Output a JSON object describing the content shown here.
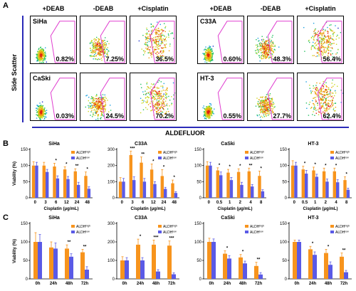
{
  "panels": {
    "a": "A",
    "b": "B",
    "c": "C"
  },
  "flow": {
    "headers": [
      "+DEAB",
      "-DEAB",
      "+Cisplatin"
    ],
    "y_title": "Side Scatter",
    "x_title": "ALDEFLUOR",
    "groups": [
      {
        "rows": [
          {
            "cell": "SiHa",
            "percentages": [
              "0.82%",
              "7.25%",
              "36.5%"
            ]
          },
          {
            "cell": "CaSki",
            "percentages": [
              "0.03%",
              "24.5%",
              "70.2%"
            ]
          }
        ]
      },
      {
        "rows": [
          {
            "cell": "C33A",
            "percentages": [
              "0.60%",
              "48.3%",
              "56.4%"
            ]
          },
          {
            "cell": "HT-3",
            "percentages": [
              "0.55%",
              "27.7%",
              "62.4%"
            ]
          }
        ]
      }
    ],
    "colors": {
      "gate": "#e040d0",
      "axis_line": "#2a2ab8"
    }
  },
  "chart_data": [
    {
      "panel": "B",
      "type": "bar",
      "title": "SiHa",
      "xlabel": "Cisplatin (μg/mL)",
      "ylabel": "Viability (%)",
      "categories": [
        "0",
        "3",
        "6",
        "12",
        "24",
        "48"
      ],
      "ylim": [
        0,
        150
      ],
      "yticks": [
        0,
        50,
        100,
        150
      ],
      "series": [
        {
          "name": "ALDHhigh",
          "values": [
            100,
            100,
            97,
            88,
            82,
            68
          ]
        },
        {
          "name": "ALDHlow",
          "values": [
            100,
            80,
            60,
            58,
            40,
            28
          ]
        }
      ],
      "errors": [
        [
          12,
          10,
          10,
          8,
          8,
          12
        ],
        [
          10,
          8,
          8,
          8,
          8,
          6
        ]
      ],
      "stars": [
        "",
        "",
        "*",
        "*",
        "**",
        "*"
      ]
    },
    {
      "panel": "B",
      "type": "bar",
      "title": "C33A",
      "xlabel": "Cisplatin (μg/mL)",
      "ylabel": "",
      "categories": [
        "0",
        "3",
        "6",
        "12",
        "24",
        "48"
      ],
      "ylim": [
        0,
        300
      ],
      "yticks": [
        0,
        100,
        200,
        300
      ],
      "series": [
        {
          "name": "ALDHhigh",
          "values": [
            100,
            265,
            218,
            175,
            135,
            90
          ]
        },
        {
          "name": "ALDHlow",
          "values": [
            100,
            110,
            100,
            85,
            55,
            30
          ]
        }
      ],
      "errors": [
        [
          25,
          25,
          35,
          35,
          40,
          20
        ],
        [
          20,
          20,
          20,
          15,
          10,
          8
        ]
      ],
      "stars": [
        "",
        "***",
        "**",
        "*",
        "*",
        "*"
      ]
    },
    {
      "panel": "B",
      "type": "bar",
      "title": "CaSki",
      "xlabel": "Cisplatin (μg/mL)",
      "ylabel": "",
      "categories": [
        "0",
        "0.5",
        "1",
        "2",
        "4",
        "8"
      ],
      "ylim": [
        0,
        150
      ],
      "yticks": [
        0,
        50,
        100,
        150
      ],
      "series": [
        {
          "name": "ALDHhigh",
          "values": [
            100,
            85,
            78,
            80,
            82,
            68
          ]
        },
        {
          "name": "ALDHlow",
          "values": [
            100,
            70,
            55,
            40,
            35,
            20
          ]
        }
      ],
      "errors": [
        [
          12,
          8,
          10,
          10,
          10,
          15
        ],
        [
          10,
          10,
          8,
          8,
          6,
          5
        ]
      ],
      "stars": [
        "",
        "*",
        "*",
        "*",
        "**",
        "*"
      ]
    },
    {
      "panel": "B",
      "type": "bar",
      "title": "HT-3",
      "xlabel": "Cisplatin (μg/mL)",
      "ylabel": "",
      "categories": [
        "0",
        "0.5",
        "1",
        "2",
        "4",
        "8"
      ],
      "ylim": [
        0,
        150
      ],
      "yticks": [
        0,
        50,
        100,
        150
      ],
      "series": [
        {
          "name": "ALDHhigh",
          "values": [
            100,
            88,
            85,
            82,
            82,
            55
          ]
        },
        {
          "name": "ALDHlow",
          "values": [
            100,
            75,
            65,
            50,
            48,
            25
          ]
        }
      ],
      "errors": [
        [
          15,
          10,
          10,
          10,
          10,
          10
        ],
        [
          10,
          10,
          8,
          8,
          8,
          5
        ]
      ],
      "stars": [
        "",
        "*",
        "*",
        "*",
        "*",
        "*"
      ]
    },
    {
      "panel": "C",
      "type": "bar",
      "title": "SiHa",
      "xlabel": "",
      "ylabel": "Viability (%)",
      "categories": [
        "0h",
        "24h",
        "48h",
        "72h"
      ],
      "ylim": [
        0,
        150
      ],
      "yticks": [
        0,
        50,
        100,
        150
      ],
      "series": [
        {
          "name": "ALDHhigh",
          "values": [
            100,
            85,
            82,
            72
          ]
        },
        {
          "name": "ALDHlow",
          "values": [
            100,
            82,
            60,
            25
          ]
        }
      ],
      "errors": [
        [
          25,
          15,
          10,
          8
        ],
        [
          20,
          15,
          8,
          8
        ]
      ],
      "stars": [
        "",
        "",
        "**",
        "**"
      ]
    },
    {
      "panel": "C",
      "type": "bar",
      "title": "C33A",
      "xlabel": "",
      "ylabel": "",
      "categories": [
        "0h",
        "24h",
        "48h",
        "72h"
      ],
      "ylim": [
        0,
        300
      ],
      "yticks": [
        0,
        100,
        200,
        300
      ],
      "series": [
        {
          "name": "ALDHhigh",
          "values": [
            100,
            185,
            185,
            180
          ]
        },
        {
          "name": "ALDHlow",
          "values": [
            100,
            100,
            40,
            25
          ]
        }
      ],
      "errors": [
        [
          20,
          30,
          25,
          25
        ],
        [
          15,
          15,
          10,
          8
        ]
      ],
      "stars": [
        "",
        "*",
        "***",
        "***"
      ]
    },
    {
      "panel": "C",
      "type": "bar",
      "title": "CaSki",
      "xlabel": "",
      "ylabel": "",
      "categories": [
        "0h",
        "24h",
        "48h",
        "72h"
      ],
      "ylim": [
        0,
        150
      ],
      "yticks": [
        0,
        50,
        100,
        150
      ],
      "series": [
        {
          "name": "ALDHhigh",
          "values": [
            100,
            68,
            58,
            35
          ]
        },
        {
          "name": "ALDHlow",
          "values": [
            100,
            55,
            42,
            12
          ]
        }
      ],
      "errors": [
        [
          10,
          8,
          8,
          10
        ],
        [
          8,
          8,
          6,
          5
        ]
      ],
      "stars": [
        "",
        "*",
        "*",
        "**"
      ]
    },
    {
      "panel": "C",
      "type": "bar",
      "title": "HT-3",
      "xlabel": "",
      "ylabel": "",
      "categories": [
        "0h",
        "24h",
        "48h",
        "72h"
      ],
      "ylim": [
        0,
        150
      ],
      "yticks": [
        0,
        50,
        100,
        150
      ],
      "series": [
        {
          "name": "ALDHhigh",
          "values": [
            100,
            80,
            70,
            60
          ]
        },
        {
          "name": "ALDHlow",
          "values": [
            100,
            65,
            38,
            18
          ]
        }
      ],
      "errors": [
        [
          5,
          8,
          10,
          10
        ],
        [
          5,
          8,
          8,
          5
        ]
      ],
      "stars": [
        "",
        "*",
        "*",
        "**"
      ]
    }
  ],
  "legend": {
    "high": "ALDH",
    "high_sup": "high",
    "low": "ALDH",
    "low_sup": "low"
  },
  "colors": {
    "high": "#f7941d",
    "low": "#5a5ae6"
  }
}
